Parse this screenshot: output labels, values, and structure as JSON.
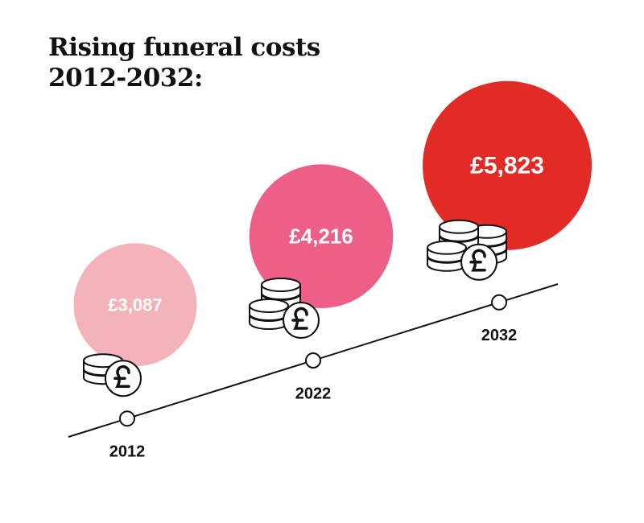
{
  "chart_data": {
    "type": "bubble",
    "title": "Rising funeral costs 2012-2032:",
    "categories": [
      "2012",
      "2022",
      "2032"
    ],
    "values": [
      3087,
      4216,
      5823
    ],
    "value_labels": [
      "£3,087",
      "£4,216",
      "£5,823"
    ],
    "colors": [
      "#f4b3ba",
      "#ec5f86",
      "#e22b26"
    ]
  }
}
